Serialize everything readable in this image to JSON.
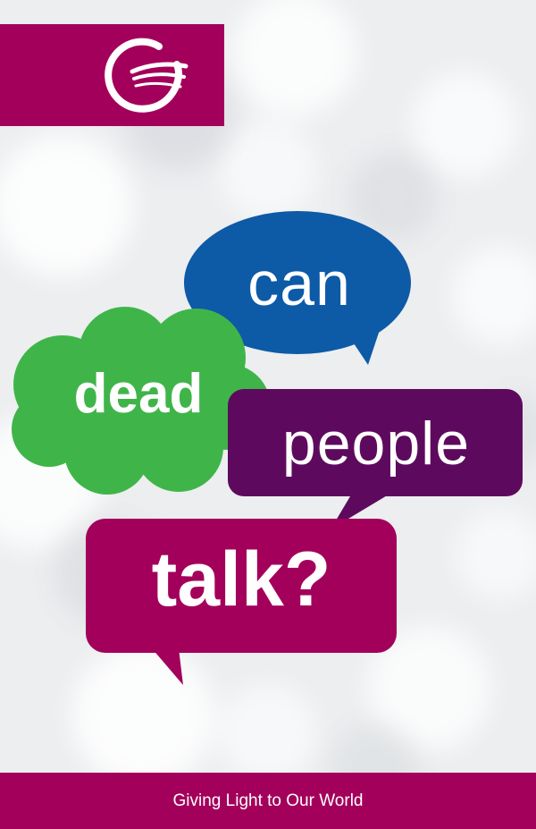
{
  "colors": {
    "brand": "#a3005b",
    "blue_bubble": "#0d5aa7",
    "green_bubble": "#3fb549",
    "purple_bubble": "#5d0a5e",
    "magenta_bubble": "#a3005b",
    "background": "#eef0f2"
  },
  "logo": {
    "icon": "swirl-g-logo-icon"
  },
  "bubbles": {
    "can": "can",
    "dead": "dead",
    "people": "people",
    "talk": "talk?"
  },
  "footer": {
    "tagline": "Giving Light to Our World"
  }
}
